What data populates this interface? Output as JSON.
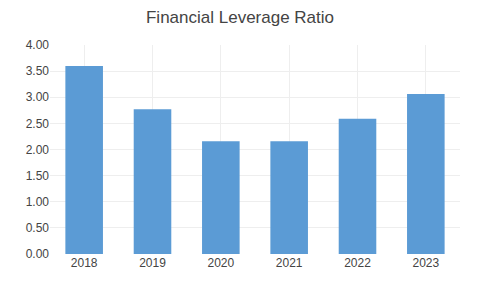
{
  "chart_data": {
    "type": "bar",
    "title": "Financial Leverage Ratio",
    "categories": [
      "2018",
      "2019",
      "2020",
      "2021",
      "2022",
      "2023"
    ],
    "values": [
      3.6,
      2.77,
      2.16,
      2.16,
      2.59,
      3.06
    ],
    "color": "#5B9BD5",
    "ylim": [
      0.0,
      4.0
    ],
    "yticks": [
      {
        "value": 0.0,
        "label": "0.00"
      },
      {
        "value": 0.5,
        "label": "0.50"
      },
      {
        "value": 1.0,
        "label": "1.00"
      },
      {
        "value": 1.5,
        "label": "1.50"
      },
      {
        "value": 2.0,
        "label": "2.00"
      },
      {
        "value": 2.5,
        "label": "2.50"
      },
      {
        "value": 3.0,
        "label": "3.00"
      },
      {
        "value": 3.5,
        "label": "3.50"
      },
      {
        "value": 4.0,
        "label": "4.00"
      }
    ],
    "grid": true
  }
}
